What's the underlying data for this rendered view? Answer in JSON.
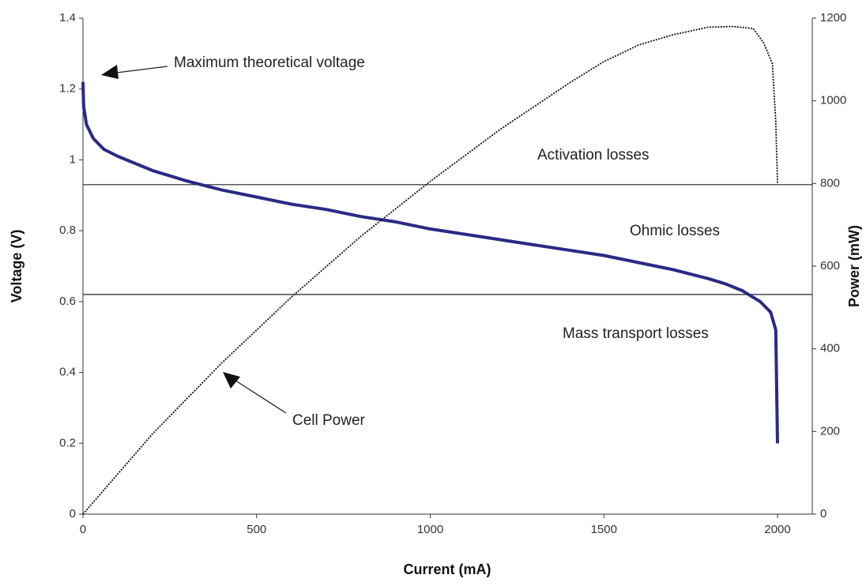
{
  "chart_data": {
    "type": "line",
    "x_label": "Current (mA)",
    "y_label": "Voltage (V)",
    "y2_label": "Power (mW)",
    "xlim": [
      0,
      2100
    ],
    "xticks": [
      0,
      500,
      1000,
      1500,
      2000
    ],
    "ylim": [
      0,
      1.4
    ],
    "yticks": [
      0,
      0.2,
      0.4,
      0.6,
      0.8,
      1,
      1.2,
      1.4
    ],
    "y2lim": [
      0,
      1200
    ],
    "y2ticks": [
      0,
      200,
      400,
      600,
      800,
      1000,
      1200
    ],
    "hlines": [
      0.93,
      0.62
    ],
    "series": [
      {
        "color": "#2b2a85",
        "x": [
          0,
          2,
          10,
          30,
          60,
          100,
          200,
          300,
          400,
          500,
          600,
          700,
          800,
          900,
          1000,
          1100,
          1200,
          1300,
          1400,
          1500,
          1600,
          1700,
          1800,
          1850,
          1900,
          1950,
          1980,
          1995,
          2000
        ],
        "values": [
          1.22,
          1.15,
          1.1,
          1.06,
          1.03,
          1.01,
          0.97,
          0.94,
          0.915,
          0.895,
          0.875,
          0.86,
          0.84,
          0.825,
          0.805,
          0.79,
          0.775,
          0.76,
          0.745,
          0.73,
          0.71,
          0.69,
          0.665,
          0.65,
          0.63,
          0.6,
          0.57,
          0.52,
          0.2
        ]
      },
      {
        "color": "#111111",
        "axis": "y2",
        "x": [
          0,
          200,
          400,
          600,
          800,
          1000,
          1200,
          1400,
          1500,
          1600,
          1700,
          1800,
          1870,
          1930,
          1960,
          1985,
          1995,
          2000
        ],
        "values": [
          0,
          194,
          366,
          525,
          672,
          805,
          930,
          1043,
          1095,
          1135,
          1160,
          1178,
          1180,
          1175,
          1140,
          1090,
          950,
          800
        ]
      }
    ],
    "annotations": [
      "Maximum theoretical voltage",
      "Activation losses",
      "Ohmic losses",
      "Mass transport losses",
      "Cell Power"
    ]
  }
}
